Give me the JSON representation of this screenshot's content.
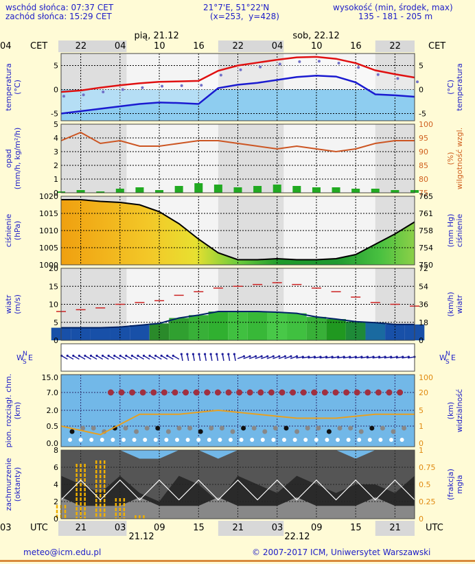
{
  "header": {
    "sunrise": "wschód słońca: 07:37 CET",
    "sunset": "zachód słońca: 15:29 CET",
    "coords": "21°7'E, 51°22'N",
    "grid": "(x=253,  y=428)",
    "altitude_label": "wysokość (min, środek, max)",
    "altitude_values": "135 - 181 - 205 m"
  },
  "top_axis": {
    "tz": "CET",
    "hours": [
      "22",
      "04",
      "10",
      "16",
      "22",
      "04",
      "10",
      "16",
      "22",
      "04"
    ],
    "day1": "pią, 21.12",
    "day2": "sob, 22.12"
  },
  "bottom_axis": {
    "tz": "UTC",
    "hours": [
      "21",
      "03",
      "09",
      "15",
      "21",
      "03",
      "09",
      "15",
      "21",
      "03"
    ],
    "day1": "21.12",
    "day2": "22.12"
  },
  "footer": {
    "email": "meteo@icm.edu.pl",
    "copyright": "© 2007-2017 ICM, Uniwersytet Warszawski"
  },
  "panels": {
    "temperature": {
      "left_label": "temperatura\n(°C)",
      "right_label": "(°C)\ntemperatura",
      "left_ticks": [
        "5",
        "0",
        "-5"
      ],
      "right_ticks": [
        "5",
        "0",
        "-5"
      ]
    },
    "precip": {
      "left_label": "opad\n(mm/h, kg/m²/h)",
      "right_label": "(%)\nwilgotność wzgl.",
      "left_ticks": [
        "5",
        "4",
        "3",
        "2",
        "1",
        "0"
      ],
      "right_ticks": [
        "100",
        "95",
        "90",
        "85",
        "80",
        "75"
      ]
    },
    "pressure": {
      "left_label": "ciśnienie\n(hPa)",
      "right_label": "(mm Hg)\nciśnienie",
      "left_ticks": [
        "1020",
        "1015",
        "1010",
        "1005",
        "1000"
      ],
      "right_ticks": [
        "765",
        "761",
        "758",
        "754",
        "750"
      ]
    },
    "wind": {
      "left_label": "wiatr\n(m/s)",
      "right_label": "(km/h)\nwiatr",
      "left_ticks": [
        "20",
        "15",
        "10",
        "5",
        "0"
      ],
      "right_ticks": [
        "72",
        "54",
        "36",
        "18",
        "0"
      ]
    },
    "winddir": {
      "compass": "W S N E"
    },
    "cloudbase": {
      "left_label": "pion. rozciągł. chm.\n(km)",
      "right_label": "(km)\nwidzialność",
      "left_ticks": [
        "15.0",
        "7.0",
        "2.0",
        "0.5",
        "0.0"
      ],
      "right_ticks": [
        "100",
        "20",
        "5",
        "1",
        "0"
      ]
    },
    "cloudcover": {
      "left_label": "zachmurzenie\n(oktanty)",
      "right_label": "(frakcja)\nmgła",
      "left_ticks": [
        "8",
        "6",
        "4",
        "2",
        "0"
      ],
      "right_ticks": [
        "1",
        "0.75",
        "0.5",
        "0.25",
        "0"
      ]
    }
  },
  "chart_data": [
    {
      "type": "line",
      "ylabel": "temperatura (°C)",
      "ylim": [
        -6.5,
        7.5
      ],
      "x_hours_from_start": [
        0,
        3,
        6,
        9,
        12,
        15,
        18,
        21,
        24,
        27,
        30,
        33,
        36,
        39,
        42,
        45,
        48,
        51,
        54
      ],
      "series": [
        {
          "name": "max",
          "color": "#e01010",
          "values": [
            -0.5,
            -0.2,
            0.4,
            0.9,
            1.3,
            1.6,
            1.7,
            1.8,
            3.9,
            5.0,
            5.6,
            6.2,
            6.7,
            6.8,
            6.4,
            5.5,
            4.0,
            3.2,
            2.5
          ]
        },
        {
          "name": "min",
          "color": "#1a1ad0",
          "values": [
            -5.0,
            -4.5,
            -4.0,
            -3.5,
            -3.0,
            -2.7,
            -2.8,
            -3.0,
            0.3,
            1.0,
            1.4,
            2.0,
            2.6,
            2.9,
            2.7,
            1.5,
            -1.0,
            -1.2,
            -1.5
          ]
        }
      ]
    },
    {
      "type": "bar",
      "ylabel": "opad (mm/h)",
      "ylim": [
        0,
        5
      ],
      "x_hours_from_start": [
        0,
        3,
        6,
        9,
        12,
        15,
        18,
        21,
        24,
        27,
        30,
        33,
        36,
        39,
        42,
        45,
        48,
        51,
        54
      ],
      "series": [
        {
          "name": "opad",
          "color": "#22aa22",
          "values": [
            0.1,
            0.2,
            0.1,
            0.3,
            0.4,
            0.2,
            0.5,
            0.7,
            0.6,
            0.4,
            0.5,
            0.6,
            0.5,
            0.4,
            0.4,
            0.3,
            0.3,
            0.2,
            0.2
          ]
        },
        {
          "name": "wilgotność wzgl.",
          "color": "#cc5522",
          "values": [
            94,
            97,
            93,
            94,
            92,
            92,
            93,
            94,
            94,
            93,
            92,
            91,
            92,
            91,
            90,
            91,
            93,
            94,
            94
          ]
        }
      ]
    },
    {
      "type": "area",
      "ylabel": "ciśnienie (hPa)",
      "ylim": [
        1000,
        1020
      ],
      "x_hours_from_start": [
        0,
        3,
        6,
        9,
        12,
        15,
        18,
        21,
        24,
        27,
        30,
        33,
        36,
        39,
        42,
        45,
        48,
        51,
        54
      ],
      "series": [
        {
          "name": "ciśnienie",
          "color": "#000000",
          "values": [
            1019.0,
            1019.0,
            1018.5,
            1018.2,
            1017.5,
            1015.5,
            1012.0,
            1007.5,
            1003.5,
            1001.5,
            1001.5,
            1001.8,
            1001.5,
            1001.5,
            1001.8,
            1003.0,
            1006.0,
            1009.0,
            1012.5
          ]
        }
      ]
    },
    {
      "type": "line",
      "ylabel": "wiatr (m/s)",
      "ylim": [
        0,
        20
      ],
      "x_hours_from_start": [
        0,
        3,
        6,
        9,
        12,
        15,
        18,
        21,
        24,
        27,
        30,
        33,
        36,
        39,
        42,
        45,
        48,
        51,
        54
      ],
      "series": [
        {
          "name": "średni",
          "color": "#003399",
          "values": [
            3.5,
            3.5,
            3.5,
            3.7,
            4.2,
            4.7,
            6.2,
            7.0,
            8.0,
            8.0,
            8.0,
            7.8,
            7.5,
            6.5,
            5.9,
            5.2,
            4.9,
            4.4,
            4.4
          ]
        },
        {
          "name": "porywy",
          "color": "#cc2222",
          "values": [
            8.0,
            8.5,
            9.0,
            10.0,
            10.5,
            11.0,
            12.5,
            13.5,
            14.5,
            15.0,
            15.5,
            16.0,
            15.5,
            14.5,
            13.5,
            12.0,
            10.5,
            10.0,
            9.5
          ]
        }
      ]
    },
    {
      "type": "line",
      "ylabel": "widzialność (km)",
      "ylim": [
        0,
        100
      ],
      "x_hours_from_start": [
        0,
        6,
        12,
        18,
        24,
        30,
        36,
        42,
        48,
        54
      ],
      "series": [
        {
          "name": "widzialność",
          "color": "#e8a020",
          "values": [
            1,
            0.5,
            4,
            4,
            5,
            4,
            3,
            3,
            4,
            4
          ]
        }
      ]
    },
    {
      "type": "area",
      "ylabel": "zachmurzenie (oktanty)",
      "ylim": [
        0,
        8
      ],
      "x_hours_from_start": [
        0,
        3,
        6,
        9,
        12,
        15,
        18,
        21,
        24,
        27,
        30,
        33,
        36,
        39,
        42,
        45,
        48,
        51,
        54
      ],
      "series": [
        {
          "name": "zachmurzenie",
          "color": "#333333",
          "values": [
            8,
            8,
            8,
            8,
            7,
            7,
            8,
            8,
            7,
            8,
            8,
            8,
            8,
            8,
            8,
            7,
            8,
            8,
            8
          ]
        },
        {
          "name": "mgła",
          "color": "#f0b000",
          "values": [
            0.2,
            0.8,
            0.85,
            0.3,
            0.05,
            0,
            0,
            0,
            0,
            0,
            0,
            0,
            0,
            0,
            0,
            0,
            0,
            0,
            0
          ]
        }
      ]
    }
  ]
}
